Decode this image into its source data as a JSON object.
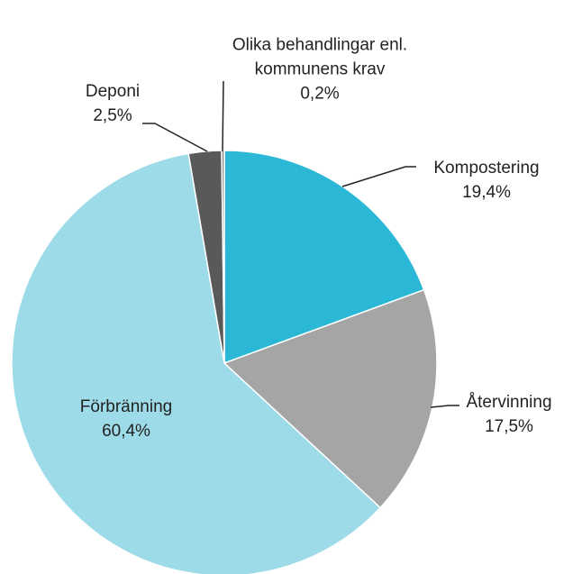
{
  "chart_data": {
    "type": "pie",
    "categories": [
      "Kompostering",
      "Återvinning",
      "Förbränning",
      "Deponi",
      "Olika behandlingar enl. kommunens krav"
    ],
    "values": [
      19.4,
      17.5,
      60.4,
      2.5,
      0.2
    ],
    "value_labels": [
      "19,4%",
      "17,5%",
      "60,4%",
      "2,5%",
      "0,2%"
    ],
    "colors": [
      "#2bb8d6",
      "#a5a5a5",
      "#9ddbe8",
      "#595959",
      "#8c8c8c"
    ]
  }
}
